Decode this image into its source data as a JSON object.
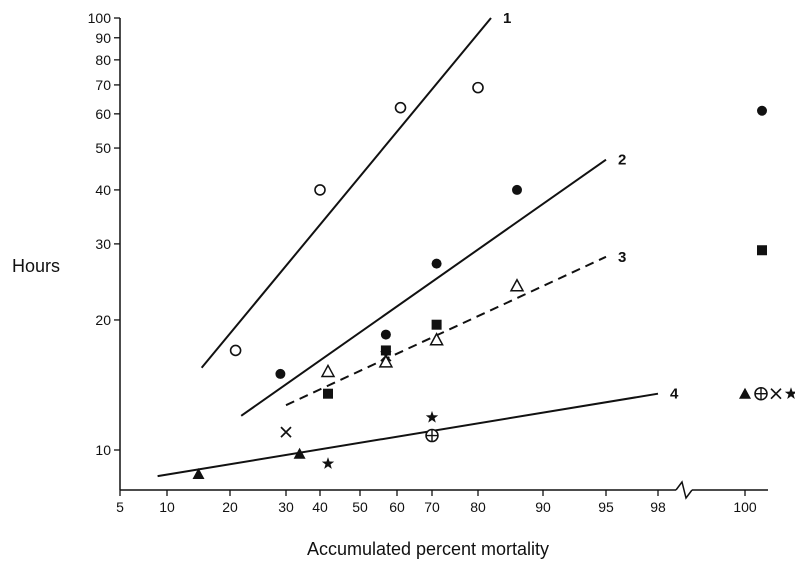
{
  "chart_data": {
    "type": "scatter",
    "title": "",
    "xlabel": "Accumulated percent mortality",
    "ylabel": "Hours",
    "x_scale": "probability",
    "y_scale": "log",
    "ylim": [
      8,
      100
    ],
    "x_ticks": [
      5,
      10,
      20,
      30,
      40,
      50,
      60,
      70,
      80,
      90,
      95,
      98,
      100
    ],
    "y_ticks": [
      10,
      20,
      30,
      40,
      50,
      60,
      70,
      80,
      90,
      100
    ],
    "axis_break": "between 98 and 100",
    "grid": false,
    "legend": "none",
    "colors": {
      "ink": "#111111",
      "background": "#ffffff"
    },
    "series": [
      {
        "line_label": "1",
        "marker": "open-circle",
        "line_style": "solid",
        "points": [
          {
            "x": 21,
            "y": 17
          },
          {
            "x": 40,
            "y": 40
          },
          {
            "x": 61,
            "y": 62
          },
          {
            "x": 80,
            "y": 69
          }
        ],
        "fit": [
          {
            "x": 15.5,
            "y": 15.5
          },
          {
            "x": 82,
            "y": 100
          }
        ]
      },
      {
        "line_label": "2",
        "marker": "filled-circle",
        "line_style": "solid",
        "points": [
          {
            "x": 29,
            "y": 15
          },
          {
            "x": 57,
            "y": 18.5
          },
          {
            "x": 71,
            "y": 27
          },
          {
            "x": 86,
            "y": 40
          },
          {
            "x": 100,
            "y": 61
          }
        ],
        "fit": [
          {
            "x": 22,
            "y": 12
          },
          {
            "x": 95,
            "y": 47
          }
        ]
      },
      {
        "line_label": "3",
        "marker": "open-triangle / filled-square",
        "line_style": "dashed",
        "points": [
          {
            "x": 42,
            "y": 15.2,
            "marker": "open-triangle"
          },
          {
            "x": 57,
            "y": 16,
            "marker": "open-triangle"
          },
          {
            "x": 71,
            "y": 18,
            "marker": "open-triangle"
          },
          {
            "x": 86,
            "y": 24,
            "marker": "open-triangle"
          },
          {
            "x": 42,
            "y": 13.5,
            "marker": "filled-square"
          },
          {
            "x": 57,
            "y": 17,
            "marker": "filled-square"
          },
          {
            "x": 71,
            "y": 19.5,
            "marker": "filled-square"
          },
          {
            "x": 100,
            "y": 29,
            "marker": "filled-square"
          }
        ],
        "fit": [
          {
            "x": 30,
            "y": 12.7
          },
          {
            "x": 95,
            "y": 28
          }
        ]
      },
      {
        "line_label": "4",
        "marker": "filled-triangle / cross / star / circled-plus",
        "line_style": "solid",
        "points": [
          {
            "x": 15,
            "y": 8.8,
            "marker": "filled-triangle"
          },
          {
            "x": 34,
            "y": 9.8,
            "marker": "filled-triangle"
          },
          {
            "x": 100,
            "y": 13.5,
            "marker": "filled-triangle"
          },
          {
            "x": 30,
            "y": 11,
            "marker": "cross"
          },
          {
            "x": 57,
            "y": 16.5,
            "marker": "cross"
          },
          {
            "x": 100,
            "y": 13.5,
            "marker": "cross"
          },
          {
            "x": 42,
            "y": 9.3,
            "marker": "star"
          },
          {
            "x": 70,
            "y": 11.9,
            "marker": "star"
          },
          {
            "x": 100,
            "y": 13.5,
            "marker": "star"
          },
          {
            "x": 70,
            "y": 10.8,
            "marker": "circled-plus"
          },
          {
            "x": 100,
            "y": 13.5,
            "marker": "circled-plus"
          }
        ],
        "fit": [
          {
            "x": 9,
            "y": 8.7
          },
          {
            "x": 98,
            "y": 13.5
          }
        ]
      }
    ]
  }
}
